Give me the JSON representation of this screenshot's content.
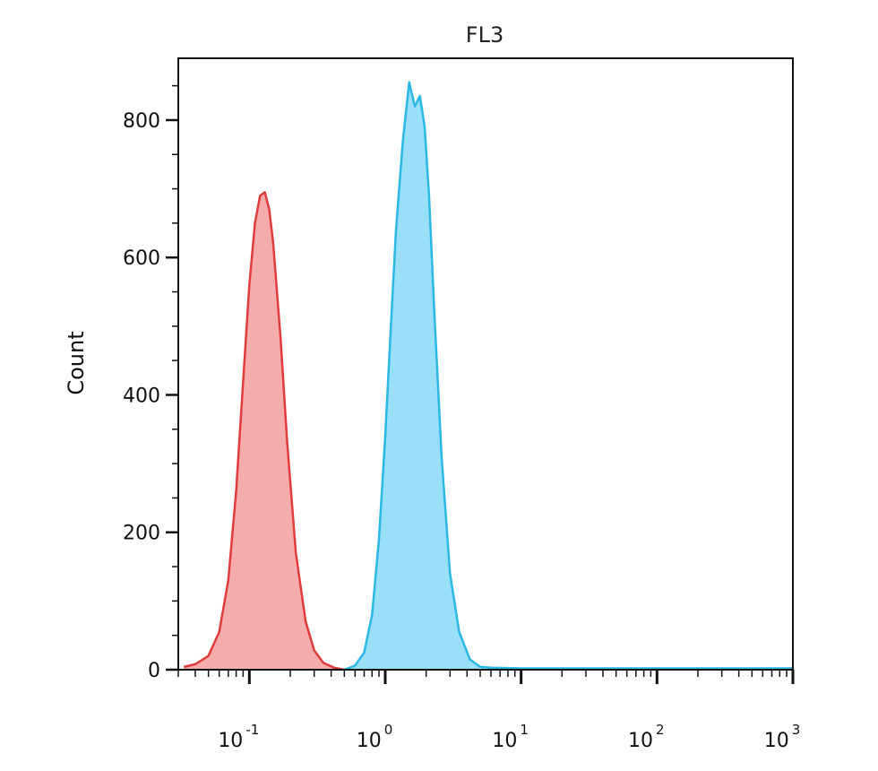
{
  "chart_data": {
    "type": "area",
    "title": "FL3",
    "xlabel": "",
    "ylabel": "Count",
    "x_scale": "log",
    "xlim": [
      0.03,
      1000
    ],
    "ylim": [
      0,
      890
    ],
    "x_tick_values": [
      0.1,
      1,
      10,
      100,
      1000
    ],
    "x_ticks": [
      {
        "base": "10",
        "exp": "-1"
      },
      {
        "base": "10",
        "exp": "0"
      },
      {
        "base": "10",
        "exp": "1"
      },
      {
        "base": "10",
        "exp": "2"
      },
      {
        "base": "10",
        "exp": "3"
      }
    ],
    "y_ticks": [
      0,
      200,
      400,
      600,
      800
    ],
    "grid": false,
    "series": [
      {
        "color": "#e03c3c",
        "fill": "#f4a3a3",
        "x": [
          0.033,
          0.04,
          0.05,
          0.06,
          0.07,
          0.08,
          0.09,
          0.1,
          0.11,
          0.12,
          0.13,
          0.14,
          0.15,
          0.17,
          0.19,
          0.22,
          0.26,
          0.3,
          0.35,
          0.42,
          0.5
        ],
        "y": [
          4,
          8,
          20,
          55,
          130,
          260,
          420,
          560,
          650,
          690,
          695,
          670,
          620,
          480,
          330,
          170,
          70,
          28,
          10,
          3,
          0
        ]
      },
      {
        "color": "#2ab8e6",
        "fill": "#8fdcf7",
        "x": [
          0.5,
          0.6,
          0.7,
          0.8,
          0.9,
          1.0,
          1.1,
          1.2,
          1.35,
          1.5,
          1.65,
          1.8,
          1.95,
          2.1,
          2.3,
          2.6,
          3.0,
          3.5,
          4.2,
          5.0,
          6.0,
          10,
          100,
          1000
        ],
        "y": [
          0,
          6,
          25,
          80,
          190,
          340,
          500,
          640,
          770,
          855,
          820,
          835,
          790,
          690,
          520,
          310,
          140,
          55,
          15,
          4,
          3,
          2,
          2,
          2
        ]
      }
    ]
  }
}
